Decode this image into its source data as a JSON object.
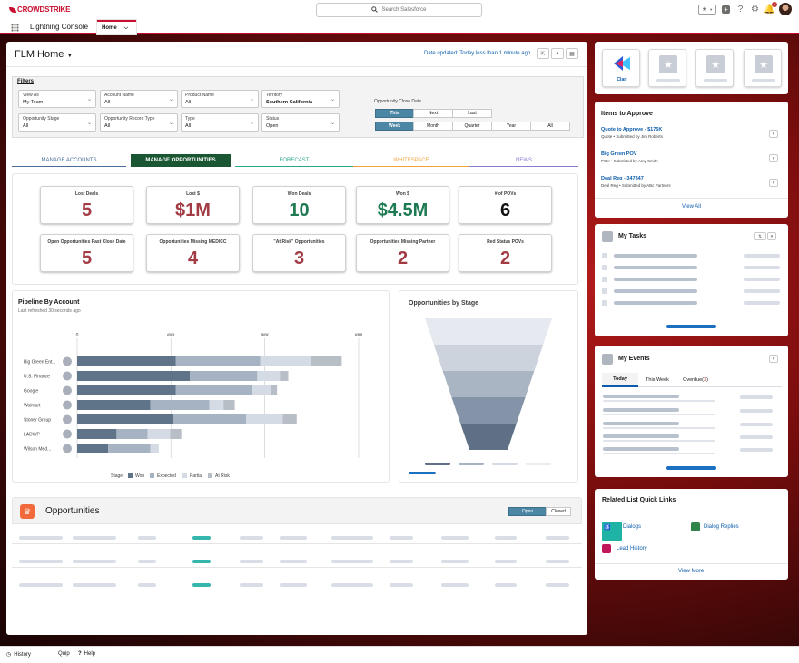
{
  "topbar": {
    "brand": "CROWDSTRIKE",
    "search_placeholder": "Search Salesforce",
    "notification_count": "1"
  },
  "nav": {
    "app_name": "Lightning Console",
    "tab_home": "Home"
  },
  "page": {
    "title": "FLM Home",
    "date_updated": "Date updated: Today less than 1 minute ago"
  },
  "filters": {
    "label": "Filters",
    "fields": [
      {
        "label": "View As",
        "value": "My Team"
      },
      {
        "label": "Account Name",
        "value": "All"
      },
      {
        "label": "Product Name",
        "value": "All"
      },
      {
        "label": "Territory",
        "value": "Southern California"
      },
      {
        "label": "Opportunity Stage",
        "value": "All"
      },
      {
        "label": "Opportunity Record Type",
        "value": "All"
      },
      {
        "label": "Type",
        "value": "All"
      },
      {
        "label": "Status",
        "value": "Open"
      }
    ],
    "close_date_label": "Opportunity Close Date",
    "period_row": [
      "This",
      "Next",
      "Last"
    ],
    "unit_row": [
      "Week",
      "Month",
      "Quarter",
      "Year",
      "All"
    ]
  },
  "tabs": [
    {
      "label": "MANAGE ACCOUNTS",
      "color": "#4a6d9b"
    },
    {
      "label": "MANAGE OPPORTUNITIES",
      "color": "#1a5631"
    },
    {
      "label": "FORECAST",
      "color": "#2aa68a"
    },
    {
      "label": "WHITESPACE",
      "color": "#f2a33a"
    },
    {
      "label": "NEWS",
      "color": "#8c7bd0"
    }
  ],
  "kpis": [
    {
      "label": "Lost Deals",
      "value": "5",
      "color": "#a23b44"
    },
    {
      "label": "Lost $",
      "value": "$1M",
      "color": "#a23b44"
    },
    {
      "label": "Won Deals",
      "value": "10",
      "color": "#1e7a52"
    },
    {
      "label": "Won $",
      "value": "$4.5M",
      "color": "#1e7a52"
    },
    {
      "label": "# of POVs",
      "value": "6",
      "color": "#111111"
    },
    {
      "label": "Open Opportunities Past Close Date",
      "value": "5",
      "color": "#a23b44"
    },
    {
      "label": "Opportunities Missing MEDICC",
      "value": "4",
      "color": "#a23b44"
    },
    {
      "label": "\"At Risk\" Opportunities",
      "value": "3",
      "color": "#a23b44"
    },
    {
      "label": "Opportunities Missing Partner",
      "value": "2",
      "color": "#a23b44"
    },
    {
      "label": "Red Status POVs",
      "value": "2",
      "color": "#a23b44"
    }
  ],
  "pipeline": {
    "title": "Pipeline By Account",
    "subtitle": "Last refreshed 30 seconds ago",
    "axis_ticks": [
      "0",
      "###",
      "###",
      "###"
    ],
    "legend_label": "Stage",
    "legend": [
      "Won",
      "Expected",
      "Partial",
      "At Risk"
    ]
  },
  "chart_data": {
    "type": "bar",
    "orientation": "horizontal",
    "stacked": true,
    "categories": [
      "Big Green Ent...",
      "U.S. Finance",
      "Google",
      "Walmart",
      "Stoner Group",
      "LADWP",
      "Wilson Med..."
    ],
    "series": [
      {
        "name": "Won",
        "values": [
          35,
          40,
          35,
          26,
          34,
          14,
          11
        ],
        "color": "#5f7389"
      },
      {
        "name": "Expected",
        "values": [
          30,
          24,
          27,
          21,
          26,
          11,
          15
        ],
        "color": "#a6b3c3"
      },
      {
        "name": "Partial",
        "values": [
          18,
          8,
          7,
          5,
          13,
          8,
          3
        ],
        "color": "#d5dbe4"
      },
      {
        "name": "At Risk",
        "values": [
          11,
          3,
          2,
          4,
          5,
          4,
          0
        ],
        "color": "#b8bec6"
      }
    ],
    "xlim": [
      0,
      100
    ],
    "grid": true,
    "legend_position": "bottom"
  },
  "stage": {
    "title": "Opportunities by Stage",
    "levels": [
      5,
      4,
      3,
      2,
      1
    ]
  },
  "opportunities": {
    "title": "Opportunities",
    "toggle_open": "Open",
    "toggle_closed": "Closed"
  },
  "right": {
    "clari_label": "Clari",
    "approve_title": "Items to Approve",
    "approve_items": [
      {
        "title": "Quote to Approve - $175K",
        "sub": "Quote • Submitted by Jim Roberts"
      },
      {
        "title": "Big Green POV",
        "sub": "POV • Submitted by Amy Smith"
      },
      {
        "title": "Deal Reg - 347347",
        "sub": "Deal Reg • Submitted by ABc Partners"
      }
    ],
    "view_all": "View All",
    "tasks_title": "My Tasks",
    "events_title": "My Events",
    "events_tabs": [
      "Today",
      "This Week",
      "Overdue"
    ],
    "overdue_count": "3",
    "quick_links_title": "Related List Quick Links",
    "quick_links": [
      "Dialogs",
      "Dialog Replies",
      "Lead History"
    ],
    "view_more": "View More"
  },
  "utility": {
    "history": "History",
    "quip": "Quip",
    "help": "Help"
  }
}
